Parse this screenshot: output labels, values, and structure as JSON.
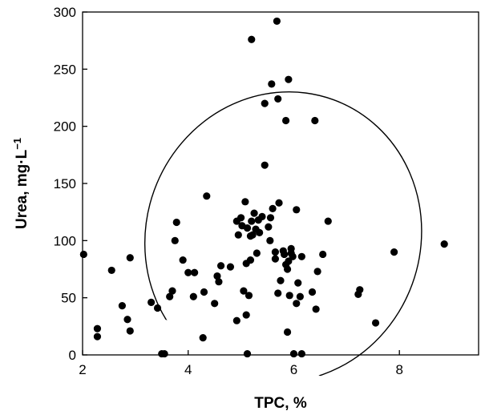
{
  "chart_data": {
    "type": "scatter",
    "xlabel": "TPC, %",
    "ylabel": "Urea, mg·L",
    "ylabel_superscript": "−1",
    "xlim": [
      2,
      9.5
    ],
    "ylim": [
      0,
      300
    ],
    "x_ticks": [
      2,
      4,
      6,
      8
    ],
    "y_ticks": [
      0,
      50,
      100,
      150,
      200,
      250,
      300
    ],
    "grid": false,
    "legend": "none",
    "confidence_ellipse": {
      "center": [
        5.8,
        103
      ],
      "semi_axes": [
        2.6,
        128
      ],
      "rotation_deg": 20
    },
    "points": [
      [
        2.02,
        88
      ],
      [
        2.28,
        23
      ],
      [
        2.28,
        16
      ],
      [
        2.55,
        74
      ],
      [
        2.75,
        43
      ],
      [
        2.85,
        31
      ],
      [
        2.9,
        85
      ],
      [
        2.9,
        21
      ],
      [
        3.3,
        46
      ],
      [
        3.42,
        41
      ],
      [
        3.5,
        1
      ],
      [
        3.55,
        1
      ],
      [
        3.65,
        51
      ],
      [
        3.7,
        56
      ],
      [
        3.75,
        100
      ],
      [
        3.78,
        116
      ],
      [
        3.9,
        83
      ],
      [
        4.0,
        72
      ],
      [
        4.1,
        51
      ],
      [
        4.12,
        72
      ],
      [
        4.28,
        15
      ],
      [
        4.3,
        55
      ],
      [
        4.35,
        139
      ],
      [
        4.5,
        45
      ],
      [
        4.55,
        69
      ],
      [
        4.58,
        64
      ],
      [
        4.62,
        78
      ],
      [
        4.8,
        77
      ],
      [
        4.92,
        117
      ],
      [
        4.92,
        30
      ],
      [
        4.95,
        105
      ],
      [
        5.0,
        120
      ],
      [
        5.02,
        113
      ],
      [
        5.05,
        56
      ],
      [
        5.08,
        134
      ],
      [
        5.1,
        35
      ],
      [
        5.1,
        80
      ],
      [
        5.12,
        111
      ],
      [
        5.12,
        1
      ],
      [
        5.15,
        52
      ],
      [
        5.18,
        104
      ],
      [
        5.18,
        83
      ],
      [
        5.2,
        117
      ],
      [
        5.2,
        276
      ],
      [
        5.22,
        105
      ],
      [
        5.25,
        124
      ],
      [
        5.28,
        110
      ],
      [
        5.3,
        89
      ],
      [
        5.33,
        118
      ],
      [
        5.35,
        107
      ],
      [
        5.4,
        121
      ],
      [
        5.45,
        220
      ],
      [
        5.45,
        166
      ],
      [
        5.52,
        112
      ],
      [
        5.55,
        100
      ],
      [
        5.56,
        120
      ],
      [
        5.58,
        237
      ],
      [
        5.6,
        128
      ],
      [
        5.65,
        84
      ],
      [
        5.65,
        90
      ],
      [
        5.68,
        292
      ],
      [
        5.7,
        224
      ],
      [
        5.7,
        54
      ],
      [
        5.72,
        133
      ],
      [
        5.75,
        65
      ],
      [
        5.8,
        91
      ],
      [
        5.82,
        88
      ],
      [
        5.85,
        205
      ],
      [
        5.85,
        79
      ],
      [
        5.88,
        20
      ],
      [
        5.88,
        75
      ],
      [
        5.9,
        241
      ],
      [
        5.9,
        82
      ],
      [
        5.92,
        52
      ],
      [
        5.95,
        89
      ],
      [
        5.95,
        93
      ],
      [
        5.98,
        86
      ],
      [
        6.0,
        1
      ],
      [
        6.05,
        127
      ],
      [
        6.05,
        45
      ],
      [
        6.08,
        63
      ],
      [
        6.12,
        51
      ],
      [
        6.15,
        86
      ],
      [
        6.15,
        1
      ],
      [
        6.35,
        55
      ],
      [
        6.4,
        205
      ],
      [
        6.42,
        40
      ],
      [
        6.45,
        73
      ],
      [
        6.55,
        88
      ],
      [
        6.65,
        117
      ],
      [
        7.22,
        53
      ],
      [
        7.25,
        57
      ],
      [
        7.55,
        28
      ],
      [
        7.9,
        90
      ],
      [
        8.85,
        97
      ]
    ]
  }
}
